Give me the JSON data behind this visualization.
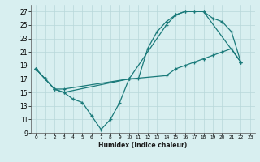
{
  "xlabel": "Humidex (Indice chaleur)",
  "bg_color": "#d8eff0",
  "grid_color": "#b8d8da",
  "line_color": "#1a7a7a",
  "xlim": [
    -0.5,
    23.5
  ],
  "ylim": [
    9,
    28
  ],
  "xticks": [
    0,
    1,
    2,
    3,
    4,
    5,
    6,
    7,
    8,
    9,
    10,
    11,
    12,
    13,
    14,
    15,
    16,
    17,
    18,
    19,
    20,
    21,
    22,
    23
  ],
  "yticks": [
    9,
    11,
    13,
    15,
    17,
    19,
    21,
    23,
    25,
    27
  ],
  "line1_x": [
    0,
    1,
    2,
    3,
    4,
    5,
    6,
    7,
    8,
    9,
    10,
    11,
    12,
    13,
    14,
    15,
    16,
    17,
    18,
    22
  ],
  "line1_y": [
    18.5,
    17,
    15.5,
    15,
    14,
    13.5,
    11.5,
    9.5,
    11,
    13.5,
    17,
    17,
    21.5,
    24,
    25.5,
    26.5,
    27,
    27,
    27,
    19.5
  ],
  "line2_x": [
    0,
    1,
    2,
    3,
    10,
    14,
    15,
    16,
    17,
    18,
    19,
    20,
    21,
    22
  ],
  "line2_y": [
    18.5,
    17,
    15.5,
    15,
    17,
    25,
    26.5,
    27,
    27,
    27,
    26,
    25.5,
    24,
    19.5
  ],
  "line3_x": [
    0,
    1,
    2,
    3,
    10,
    14,
    15,
    16,
    17,
    18,
    19,
    20,
    21,
    22
  ],
  "line3_y": [
    18.5,
    17,
    15.5,
    15.5,
    17,
    17.5,
    18.5,
    19,
    19.5,
    20,
    20.5,
    21,
    21.5,
    19.5
  ]
}
